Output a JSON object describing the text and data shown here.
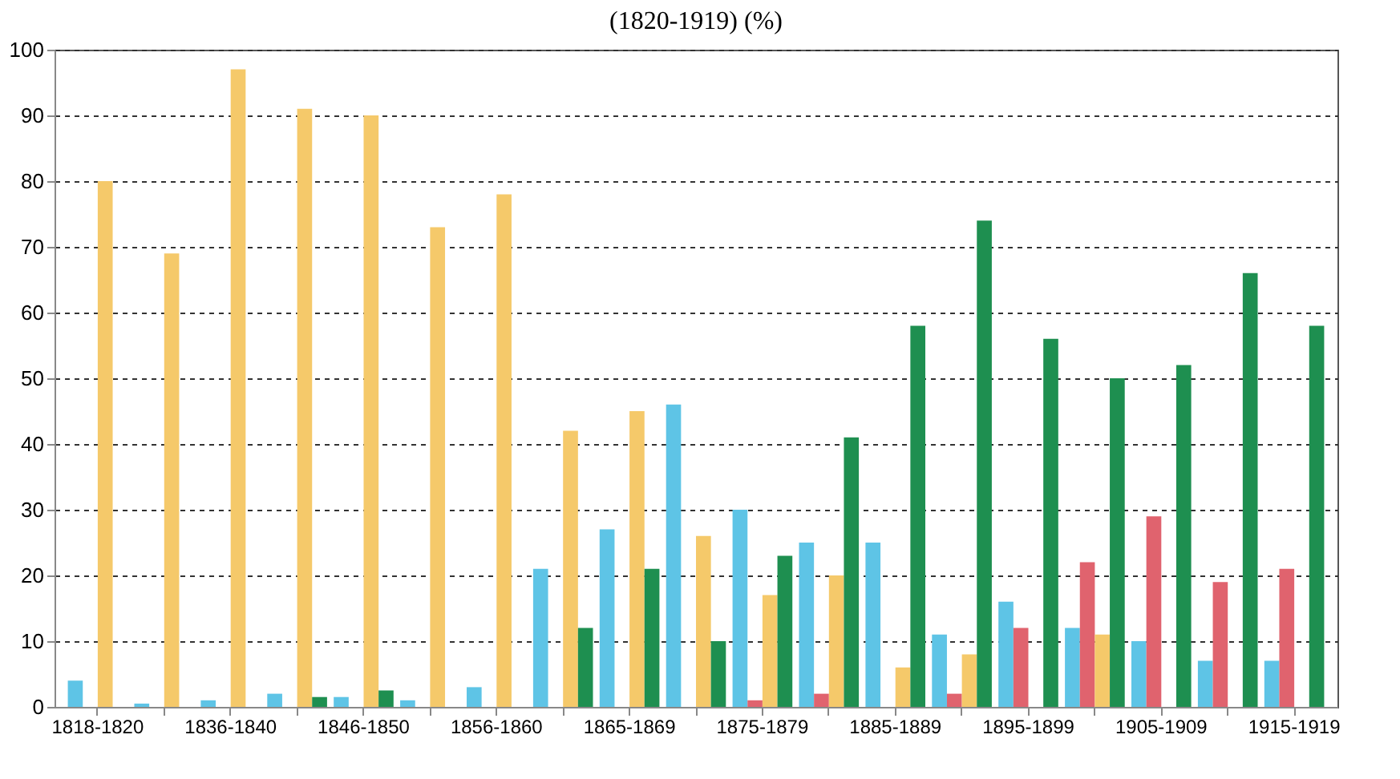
{
  "chart_data": {
    "type": "bar",
    "title": "(1820-1919) (%)",
    "categories": [
      "1818-1820",
      null,
      "1836-1840",
      null,
      "1846-1850",
      null,
      "1856-1860",
      null,
      "1865-1869",
      null,
      "1875-1879",
      null,
      "1885-1889",
      null,
      "1895-1899",
      null,
      "1905-1909",
      null,
      "1915-1919"
    ],
    "series": [
      {
        "color": "#5ec4e6",
        "values": [
          4,
          0.5,
          1,
          2,
          1.5,
          1,
          3,
          21,
          27,
          46,
          30,
          25,
          25,
          11,
          16,
          12,
          10,
          7,
          7
        ]
      },
      {
        "color": "#e0636e",
        "values": [
          null,
          null,
          null,
          null,
          null,
          null,
          null,
          null,
          null,
          null,
          1,
          2,
          null,
          2,
          12,
          22,
          29,
          19,
          21
        ]
      },
      {
        "color": "#f5c96a",
        "values": [
          80,
          69,
          97,
          91,
          90,
          73,
          78,
          42,
          45,
          26,
          17,
          20,
          6,
          8,
          null,
          11,
          null,
          null,
          null
        ]
      },
      {
        "color": "#1e8f50",
        "values": [
          null,
          null,
          null,
          1.5,
          2.5,
          null,
          null,
          12,
          21,
          10,
          23,
          41,
          58,
          74,
          56,
          50,
          52,
          66,
          58
        ]
      }
    ],
    "ylim": [
      0,
      100
    ],
    "yticks": [
      0,
      10,
      20,
      30,
      40,
      50,
      60,
      70,
      80,
      90,
      100
    ],
    "grid": "y",
    "legend": false
  }
}
